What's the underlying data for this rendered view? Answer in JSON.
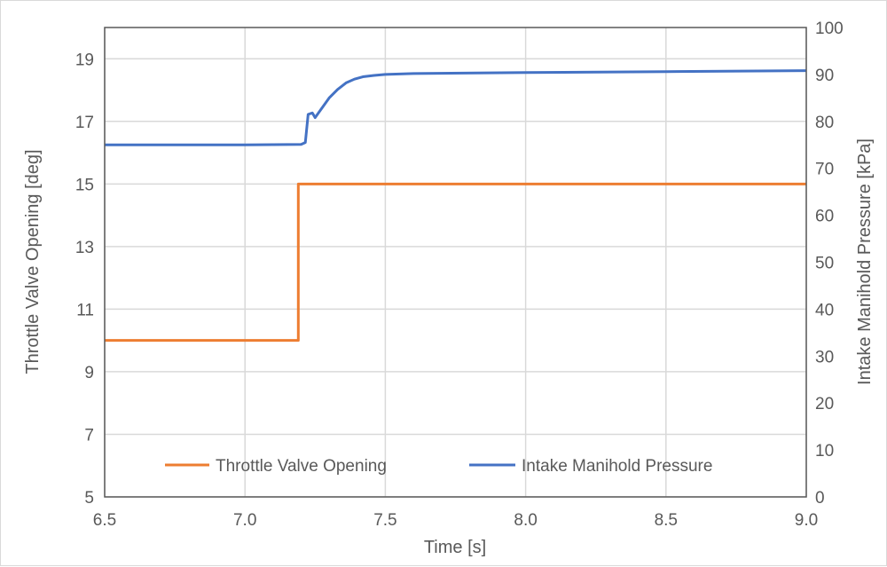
{
  "chart_data": {
    "type": "line",
    "title": "",
    "xlabel": "Time [s]",
    "ylabel_left": "Throttle Valve Opening [deg]",
    "ylabel_right": "Intake Manihold Pressure [kPa]",
    "xlim": [
      6.5,
      9.0
    ],
    "ylim_left": [
      5,
      20
    ],
    "ylim_right": [
      0,
      100
    ],
    "x_ticks": [
      "6.5",
      "7.0",
      "7.5",
      "8.0",
      "8.5",
      "9.0"
    ],
    "y_left_ticks": [
      "5",
      "7",
      "9",
      "11",
      "13",
      "15",
      "17",
      "19"
    ],
    "y_right_ticks": [
      "0",
      "10",
      "20",
      "30",
      "40",
      "50",
      "60",
      "70",
      "80",
      "90",
      "100"
    ],
    "grid": true,
    "legend_position": "bottom-inside",
    "series": [
      {
        "name": "Throttle Valve Opening",
        "axis": "left",
        "color": "#ED7D31",
        "x": [
          6.5,
          7.0,
          7.19,
          7.19,
          9.0
        ],
        "y": [
          10.0,
          10.0,
          10.0,
          15.0,
          15.0
        ]
      },
      {
        "name": "Intake Manihold Pressure",
        "axis": "right",
        "color": "#4472C4",
        "x": [
          6.5,
          7.0,
          7.2,
          7.215,
          7.225,
          7.24,
          7.25,
          7.27,
          7.3,
          7.33,
          7.36,
          7.39,
          7.42,
          7.46,
          7.5,
          7.6,
          8.0,
          8.5,
          9.0
        ],
        "y": [
          75.0,
          75.0,
          75.1,
          75.5,
          81.5,
          81.8,
          80.8,
          82.5,
          85.0,
          86.8,
          88.2,
          89.0,
          89.5,
          89.8,
          90.0,
          90.2,
          90.4,
          90.6,
          90.8
        ]
      }
    ]
  }
}
